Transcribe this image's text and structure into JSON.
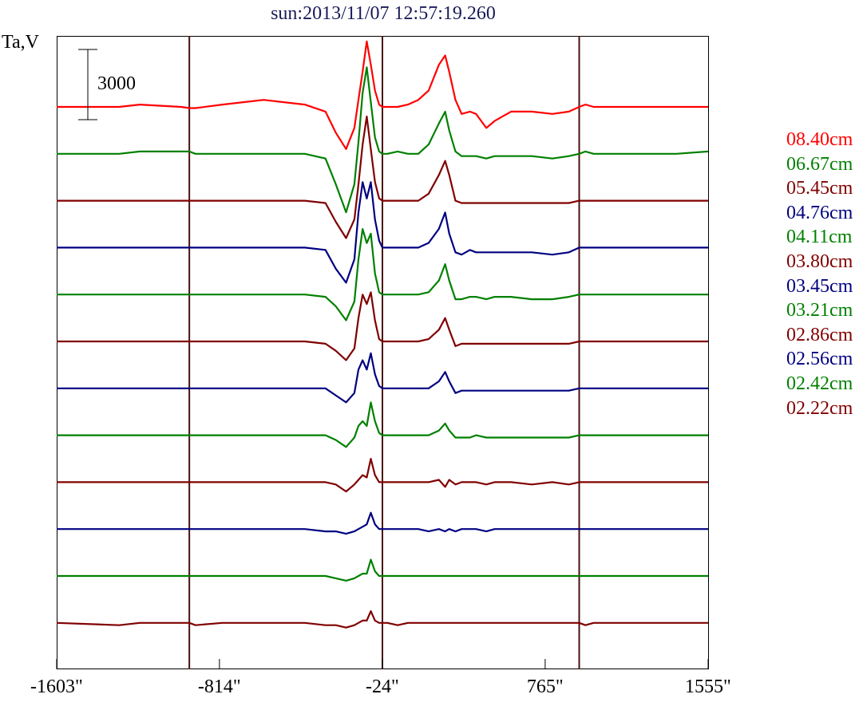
{
  "chart_data": {
    "type": "line",
    "title": "sun:2013/11/07 12:57:19.260",
    "ylabel": "Ta,V",
    "scale_bar": {
      "value": 3000,
      "label": "3000"
    },
    "x_ticks": [
      "-1603\"",
      "-814\"",
      "-24\"",
      "765\"",
      "1555\""
    ],
    "x_tick_values": [
      -1603,
      -814,
      -24,
      765,
      1555
    ],
    "xlim": [
      -1603,
      1555
    ],
    "vertical_lines": [
      -960,
      -24,
      930
    ],
    "x": [
      -1603,
      -1300,
      -1200,
      -1000,
      -960,
      -930,
      -800,
      -600,
      -400,
      -300,
      -250,
      -200,
      -160,
      -140,
      -120,
      -100,
      -80,
      -60,
      -40,
      -24,
      -10,
      0,
      50,
      100,
      150,
      200,
      250,
      280,
      300,
      330,
      360,
      400,
      430,
      480,
      520,
      600,
      700,
      800,
      880,
      930,
      960,
      1000,
      1100,
      1200,
      1300,
      1400,
      1555
    ],
    "series": [
      {
        "name": "08.40cm",
        "color": "#ff0000",
        "values": [
          0,
          0,
          100,
          0,
          -50,
          -50,
          100,
          300,
          100,
          -200,
          -1100,
          -1800,
          -900,
          300,
          1500,
          2800,
          1800,
          700,
          100,
          0,
          0,
          0,
          0,
          100,
          300,
          700,
          1800,
          2200,
          1500,
          300,
          -300,
          -200,
          -300,
          -900,
          -600,
          -200,
          -200,
          -300,
          -200,
          0,
          100,
          0,
          0,
          0,
          0,
          0,
          0
        ]
      },
      {
        "name": "06.67cm",
        "color": "#008000",
        "values": [
          0,
          0,
          100,
          100,
          100,
          0,
          0,
          0,
          0,
          -200,
          -1300,
          -2500,
          -1300,
          500,
          2600,
          3700,
          2200,
          700,
          100,
          0,
          0,
          0,
          100,
          0,
          0,
          400,
          1300,
          1800,
          1000,
          100,
          -100,
          -100,
          -100,
          -200,
          -100,
          -100,
          -100,
          -200,
          -100,
          0,
          100,
          0,
          0,
          0,
          0,
          0,
          100
        ]
      },
      {
        "name": "05.45cm",
        "color": "#800000",
        "values": [
          0,
          0,
          0,
          0,
          0,
          0,
          0,
          0,
          0,
          -100,
          -900,
          -1600,
          -800,
          700,
          2400,
          3600,
          2200,
          800,
          100,
          0,
          0,
          0,
          0,
          0,
          0,
          300,
          1100,
          1700,
          1100,
          0,
          -100,
          -100,
          -100,
          -100,
          -100,
          -100,
          -100,
          -100,
          -100,
          0,
          0,
          0,
          0,
          0,
          0,
          0,
          0
        ]
      },
      {
        "name": "04.76cm",
        "color": "#000080",
        "values": [
          0,
          0,
          0,
          0,
          0,
          0,
          0,
          0,
          0,
          -100,
          -900,
          -1500,
          -500,
          1500,
          2800,
          2100,
          2800,
          1200,
          300,
          0,
          0,
          0,
          0,
          0,
          0,
          200,
          800,
          1500,
          600,
          -200,
          -300,
          -100,
          -200,
          -200,
          -200,
          -200,
          -200,
          -300,
          -200,
          0,
          0,
          0,
          0,
          0,
          0,
          0,
          0
        ]
      },
      {
        "name": "04.11cm",
        "color": "#008000",
        "values": [
          0,
          0,
          0,
          0,
          0,
          0,
          0,
          0,
          0,
          -100,
          -500,
          -1100,
          -300,
          1500,
          2800,
          2200,
          2600,
          900,
          100,
          0,
          0,
          0,
          0,
          0,
          0,
          100,
          600,
          1300,
          600,
          -200,
          -200,
          -100,
          -100,
          -200,
          -100,
          -100,
          -200,
          -200,
          -100,
          0,
          0,
          0,
          0,
          0,
          0,
          0,
          0
        ]
      },
      {
        "name": "03.80cm",
        "color": "#800000",
        "values": [
          0,
          0,
          0,
          0,
          0,
          0,
          0,
          0,
          0,
          -100,
          -400,
          -800,
          -300,
          1000,
          2000,
          1600,
          2100,
          900,
          100,
          0,
          0,
          0,
          0,
          0,
          0,
          100,
          500,
          1000,
          500,
          -200,
          -100,
          -100,
          -100,
          -100,
          -100,
          -100,
          -100,
          -100,
          -100,
          0,
          0,
          0,
          0,
          0,
          0,
          0,
          0
        ]
      },
      {
        "name": "03.45cm",
        "color": "#000080",
        "values": [
          0,
          0,
          0,
          0,
          0,
          0,
          0,
          0,
          0,
          0,
          -300,
          -600,
          -200,
          800,
          1200,
          800,
          1500,
          600,
          100,
          0,
          0,
          0,
          0,
          0,
          0,
          0,
          300,
          700,
          300,
          -200,
          -100,
          -100,
          -100,
          -100,
          -100,
          -100,
          -100,
          -100,
          -100,
          0,
          0,
          0,
          0,
          0,
          0,
          0,
          0
        ]
      },
      {
        "name": "03.21cm",
        "color": "#008000",
        "values": [
          0,
          0,
          0,
          0,
          0,
          0,
          0,
          0,
          0,
          0,
          -200,
          -500,
          -100,
          400,
          600,
          400,
          1400,
          600,
          100,
          0,
          0,
          0,
          0,
          0,
          0,
          0,
          200,
          500,
          200,
          -100,
          -100,
          -100,
          0,
          -100,
          -100,
          -100,
          -100,
          -100,
          -100,
          0,
          0,
          0,
          0,
          0,
          0,
          0,
          0
        ]
      },
      {
        "name": "02.86cm",
        "color": "#800000",
        "values": [
          0,
          0,
          0,
          0,
          0,
          0,
          0,
          0,
          0,
          0,
          -100,
          -400,
          -100,
          100,
          300,
          200,
          1000,
          300,
          0,
          0,
          0,
          0,
          0,
          0,
          0,
          0,
          100,
          -200,
          100,
          -100,
          0,
          0,
          0,
          -100,
          0,
          0,
          -100,
          0,
          -100,
          0,
          0,
          0,
          0,
          0,
          0,
          0,
          0
        ]
      },
      {
        "name": "02.56cm",
        "color": "#000080",
        "values": [
          0,
          0,
          0,
          0,
          0,
          0,
          0,
          0,
          0,
          -100,
          -100,
          -200,
          -100,
          0,
          100,
          200,
          700,
          200,
          0,
          0,
          0,
          0,
          0,
          0,
          0,
          -100,
          0,
          -100,
          0,
          -100,
          0,
          0,
          0,
          -100,
          0,
          0,
          0,
          0,
          0,
          0,
          0,
          0,
          0,
          0,
          0,
          0,
          0
        ]
      },
      {
        "name": "02.42cm",
        "color": "#008000",
        "values": [
          0,
          0,
          0,
          0,
          0,
          0,
          0,
          0,
          0,
          0,
          -100,
          -200,
          -100,
          0,
          100,
          100,
          700,
          200,
          0,
          0,
          0,
          0,
          0,
          0,
          0,
          0,
          0,
          0,
          0,
          0,
          0,
          0,
          0,
          0,
          0,
          0,
          0,
          0,
          0,
          0,
          0,
          0,
          0,
          0,
          0,
          0,
          0
        ]
      },
      {
        "name": "02.22cm",
        "color": "#800000",
        "values": [
          0,
          -100,
          0,
          0,
          0,
          -100,
          0,
          0,
          0,
          -100,
          -100,
          -200,
          -100,
          0,
          100,
          100,
          500,
          100,
          0,
          0,
          0,
          0,
          -100,
          0,
          0,
          0,
          0,
          0,
          0,
          0,
          0,
          0,
          0,
          0,
          0,
          0,
          0,
          0,
          0,
          0,
          -100,
          0,
          0,
          0,
          0,
          0,
          0
        ]
      }
    ]
  }
}
